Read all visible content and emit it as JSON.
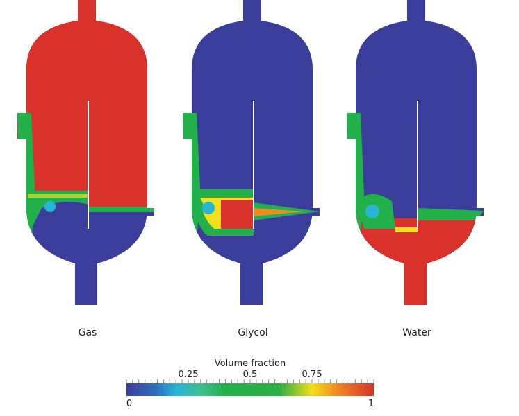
{
  "colors": {
    "gas_phase": "#d8322a",
    "liquid_low": "#3b3d9b",
    "mid": "#22b04a",
    "cyan": "#25b6d8",
    "yellow": "#f2e01a"
  },
  "vessels": [
    {
      "label": "Gas"
    },
    {
      "label": "Glycol"
    },
    {
      "label": "Water"
    }
  ],
  "colorbar": {
    "title": "Volume fraction",
    "min_label": "0",
    "max_label": "1",
    "tick_labels": [
      "0.25",
      "0.5",
      "0.75"
    ],
    "range": [
      0,
      1
    ]
  }
}
